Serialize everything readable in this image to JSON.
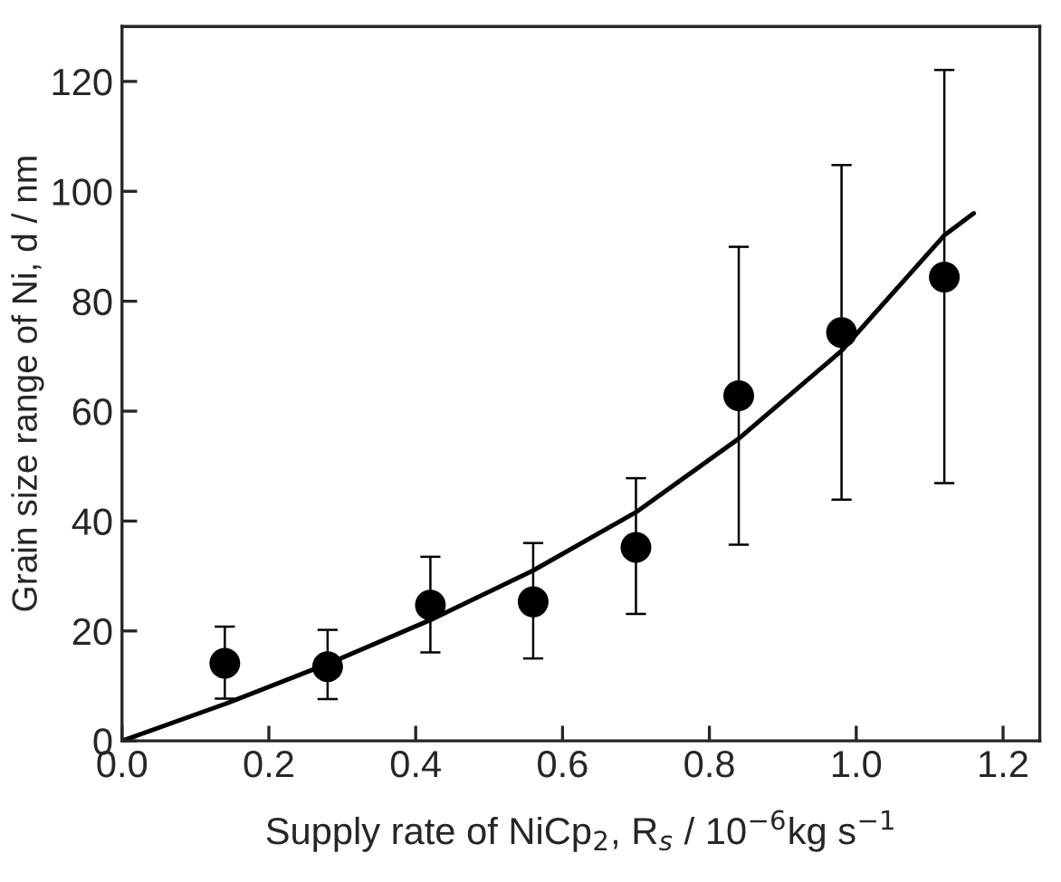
{
  "chart_data": {
    "type": "scatter",
    "xlabel": "Supply rate of NiCp$_{2}$, R$_{s}$ / 10$^{−6}$kg s$^{−1}$",
    "ylabel": "Grain size range of Ni, d / nm",
    "xlim": [
      0,
      1.25
    ],
    "ylim": [
      0,
      130
    ],
    "xticks": [
      {
        "value": 0,
        "label": "0.0"
      },
      0.2,
      0.4,
      0.6,
      0.8,
      {
        "value": 1.0,
        "label": "1.0"
      },
      1.2
    ],
    "yticks": [
      0,
      20,
      40,
      60,
      80,
      100,
      120
    ],
    "grid": false,
    "legend": false,
    "series": [
      {
        "color": "#000000",
        "marker": "circle",
        "x": [
          0.14,
          0.28,
          0.42,
          0.56,
          0.7,
          0.84,
          0.98,
          1.12
        ],
        "values": [
          14.1,
          13.5,
          24.7,
          25.3,
          35.2,
          62.8,
          74.3,
          84.4
        ],
        "errors": [
          [
            7.7,
            20.8
          ],
          [
            7.6,
            20.2
          ],
          [
            16.1,
            33.5
          ],
          [
            15,
            36
          ],
          [
            23.1,
            47.8
          ],
          [
            35.7,
            89.9
          ],
          [
            43.9,
            104.8
          ],
          [
            46.9,
            122.1
          ]
        ]
      },
      {
        "type": "line",
        "color": "#000000",
        "line_style": "solid",
        "marker": "none",
        "x": [
          0,
          0.14,
          0.28,
          0.42,
          0.56,
          0.7,
          0.84,
          0.98,
          1.12,
          1.16
        ],
        "values": [
          0,
          6.7,
          14,
          22,
          31,
          41.6,
          55,
          71,
          92,
          96
        ]
      }
    ]
  }
}
